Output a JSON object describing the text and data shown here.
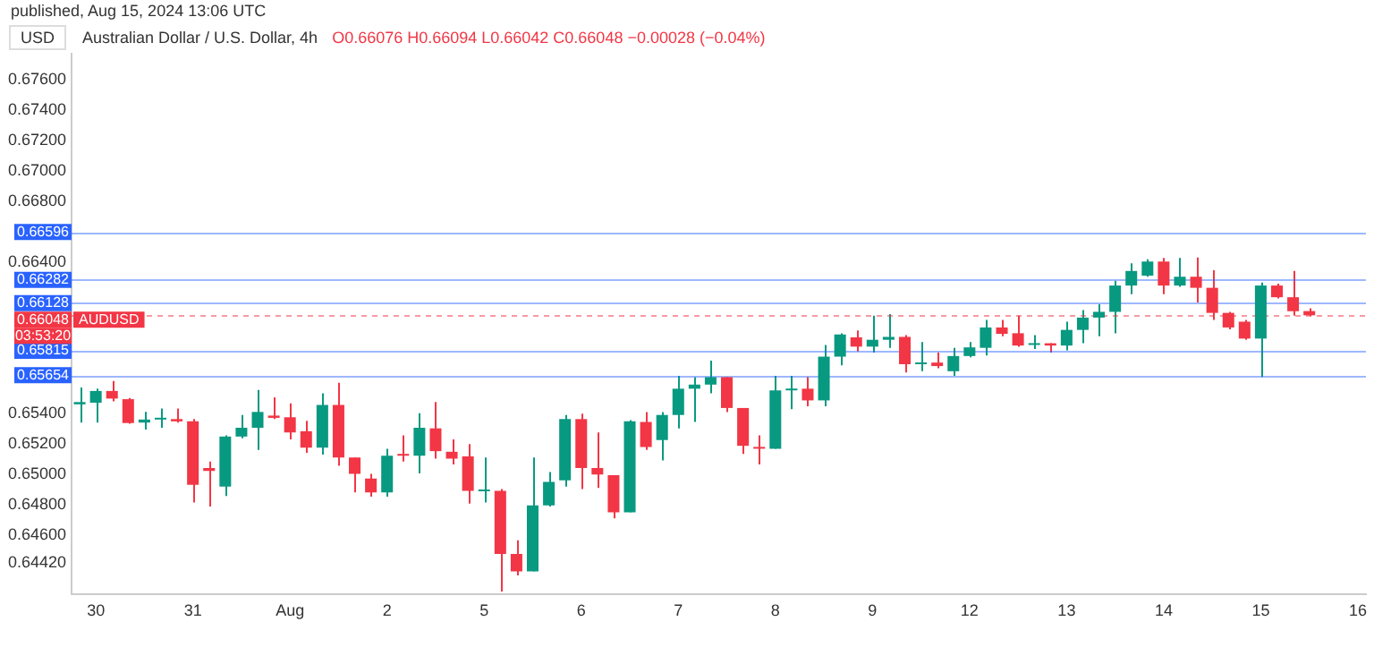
{
  "chart_data": {
    "type": "candlestick",
    "title": "Australian Dollar / U.S. Dollar, 4h",
    "subtitle": "O0.66076 H0.66094 L0.66042 C0.66048 −0.00028 (−0.04%)",
    "ylabel": "USD",
    "annotations": [
      "published, Aug 15, 2024 13:06 UTC",
      {
        "text": "AUDUSD",
        "y": 0.66048
      },
      "03:53:20"
    ],
    "categories": [
      null,
      "30",
      null,
      null,
      null,
      null,
      null,
      "31",
      null,
      null,
      null,
      null,
      null,
      "Aug",
      null,
      null,
      null,
      null,
      null,
      "2",
      null,
      null,
      null,
      null,
      null,
      "5",
      null,
      null,
      null,
      null,
      null,
      "6",
      null,
      null,
      null,
      null,
      null,
      "7",
      null,
      null,
      null,
      null,
      null,
      "8",
      null,
      null,
      null,
      null,
      null,
      "9",
      null,
      null,
      null,
      null,
      null,
      "12",
      null,
      null,
      null,
      null,
      null,
      "13",
      null,
      null,
      null,
      null,
      null,
      "14",
      null,
      null,
      null,
      null,
      null,
      "15",
      null,
      null,
      null,
      null,
      null,
      "16"
    ],
    "ohlc": [
      [
        0.65462,
        0.65573,
        0.65342,
        0.65477
      ],
      [
        0.65473,
        0.65565,
        0.65342,
        0.6555
      ],
      [
        0.6555,
        0.65615,
        0.65481,
        0.655
      ],
      [
        0.65496,
        0.65504,
        0.65335,
        0.65339
      ],
      [
        0.65342,
        0.65412,
        0.65296,
        0.65362
      ],
      [
        0.65362,
        0.65435,
        0.65308,
        0.65373
      ],
      [
        0.65365,
        0.65435,
        0.65342,
        0.6535
      ],
      [
        0.6535,
        0.65365,
        0.64816,
        0.64932
      ],
      [
        0.65043,
        0.65085,
        0.6479,
        0.65024
      ],
      [
        0.6492,
        0.65258,
        0.64859,
        0.6525
      ],
      [
        0.6525,
        0.65392,
        0.65239,
        0.65308
      ],
      [
        0.65308,
        0.65557,
        0.65162,
        0.65412
      ],
      [
        0.65388,
        0.65508,
        0.65365,
        0.65373
      ],
      [
        0.65377,
        0.65469,
        0.65231,
        0.65277
      ],
      [
        0.65285,
        0.65354,
        0.65143,
        0.65177
      ],
      [
        0.65177,
        0.65534,
        0.65131,
        0.65458
      ],
      [
        0.65458,
        0.65604,
        0.65058,
        0.65112
      ],
      [
        0.65112,
        0.65112,
        0.64882,
        0.65004
      ],
      [
        0.64974,
        0.65004,
        0.64855,
        0.64882
      ],
      [
        0.64882,
        0.6517,
        0.64855,
        0.65124
      ],
      [
        0.65128,
        0.65258,
        0.65085,
        0.65124
      ],
      [
        0.65124,
        0.65404,
        0.65008,
        0.65308
      ],
      [
        0.65304,
        0.65477,
        0.65104,
        0.65154
      ],
      [
        0.6515,
        0.65231,
        0.65066,
        0.65104
      ],
      [
        0.65119,
        0.652,
        0.64808,
        0.64893
      ],
      [
        0.64889,
        0.65112,
        0.64816,
        0.649
      ],
      [
        0.64893,
        0.64904,
        0.6423,
        0.64478
      ],
      [
        0.64478,
        0.64567,
        0.64336,
        0.64363
      ],
      [
        0.64363,
        0.65112,
        0.64363,
        0.64797
      ],
      [
        0.64797,
        0.65016,
        0.64789,
        0.64951
      ],
      [
        0.64962,
        0.65392,
        0.6492,
        0.65365
      ],
      [
        0.65365,
        0.654,
        0.64905,
        0.65043
      ],
      [
        0.65043,
        0.65277,
        0.64912,
        0.65
      ],
      [
        0.64996,
        0.64996,
        0.64712,
        0.64751
      ],
      [
        0.64751,
        0.65358,
        0.64751,
        0.6535
      ],
      [
        0.65346,
        0.65411,
        0.65162,
        0.65181
      ],
      [
        0.65227,
        0.65411,
        0.65093,
        0.65392
      ],
      [
        0.65392,
        0.6565,
        0.65304,
        0.65565
      ],
      [
        0.65565,
        0.65641,
        0.65346,
        0.65592
      ],
      [
        0.65592,
        0.65749,
        0.65534,
        0.65641
      ],
      [
        0.65641,
        0.65641,
        0.65411,
        0.65438
      ],
      [
        0.65438,
        0.65438,
        0.65135,
        0.65189
      ],
      [
        0.65181,
        0.65258,
        0.65066,
        0.6517
      ],
      [
        0.6517,
        0.6565,
        0.6517,
        0.65554
      ],
      [
        0.65554,
        0.6565,
        0.6543,
        0.65565
      ],
      [
        0.65565,
        0.65642,
        0.6545,
        0.65488
      ],
      [
        0.65488,
        0.65853,
        0.6545,
        0.65776
      ],
      [
        0.65776,
        0.6593,
        0.65719,
        0.65922
      ],
      [
        0.65903,
        0.65949,
        0.6581,
        0.65842
      ],
      [
        0.65842,
        0.66045,
        0.65803,
        0.65887
      ],
      [
        0.65887,
        0.66056,
        0.65834,
        0.65906
      ],
      [
        0.65906,
        0.65918,
        0.65672,
        0.65726
      ],
      [
        0.65726,
        0.65872,
        0.6568,
        0.65737
      ],
      [
        0.65737,
        0.65803,
        0.65699,
        0.65714
      ],
      [
        0.6568,
        0.65834,
        0.65649,
        0.6578
      ],
      [
        0.6578,
        0.65872,
        0.65772,
        0.65837
      ],
      [
        0.65834,
        0.66017,
        0.65784,
        0.65968
      ],
      [
        0.65968,
        0.66017,
        0.6591,
        0.65926
      ],
      [
        0.6593,
        0.66045,
        0.65841,
        0.65849
      ],
      [
        0.65853,
        0.65918,
        0.65826,
        0.65864
      ],
      [
        0.65864,
        0.65864,
        0.65803,
        0.65849
      ],
      [
        0.65849,
        0.66006,
        0.65818,
        0.65952
      ],
      [
        0.65952,
        0.66083,
        0.65864,
        0.66033
      ],
      [
        0.66033,
        0.66121,
        0.6591,
        0.66071
      ],
      [
        0.66071,
        0.66275,
        0.6593,
        0.66244
      ],
      [
        0.66244,
        0.6639,
        0.66187,
        0.6634
      ],
      [
        0.66309,
        0.66417,
        0.66302,
        0.66402
      ],
      [
        0.66402,
        0.66425,
        0.66187,
        0.66244
      ],
      [
        0.66244,
        0.66425,
        0.66236,
        0.66302
      ],
      [
        0.66302,
        0.66429,
        0.66133,
        0.66229
      ],
      [
        0.66229,
        0.66344,
        0.66017,
        0.66064
      ],
      [
        0.66064,
        0.66071,
        0.65956,
        0.65968
      ],
      [
        0.66006,
        0.66017,
        0.65887,
        0.65895
      ],
      [
        0.65895,
        0.66263,
        0.65642,
        0.66244
      ],
      [
        0.66244,
        0.66256,
        0.66159,
        0.66167
      ],
      [
        0.66167,
        0.6634,
        0.66045,
        0.66075
      ],
      [
        0.66076,
        0.66094,
        0.66042,
        0.66048
      ],
      null,
      null,
      null
    ],
    "colors": [
      "#089981",
      "#089981",
      "#f23645",
      "#f23645",
      "#089981",
      "#089981",
      "#f23645",
      "#f23645",
      "#f23645",
      "#089981",
      "#089981",
      "#089981",
      "#f23645",
      "#f23645",
      "#f23645",
      "#089981",
      "#f23645",
      "#f23645",
      "#f23645",
      "#089981",
      "#f23645",
      "#089981",
      "#f23645",
      "#f23645",
      "#f23645",
      "#089981",
      "#f23645",
      "#f23645",
      "#089981",
      "#089981",
      "#089981",
      "#f23645",
      "#f23645",
      "#f23645",
      "#089981",
      "#f23645",
      "#089981",
      "#089981",
      "#089981",
      "#089981",
      "#f23645",
      "#f23645",
      "#f23645",
      "#089981",
      "#089981",
      "#f23645",
      "#089981",
      "#089981",
      "#f23645",
      "#089981",
      "#089981",
      "#f23645",
      "#089981",
      "#f23645",
      "#089981",
      "#089981",
      "#089981",
      "#f23645",
      "#f23645",
      "#089981",
      "#f23645",
      "#089981",
      "#089981",
      "#089981",
      "#089981",
      "#089981",
      "#089981",
      "#f23645",
      "#089981",
      "#f23645",
      "#f23645",
      "#f23645",
      "#f23645",
      "#089981",
      "#f23645",
      "#f23645",
      "#f23645",
      null,
      null,
      null
    ],
    "ylim": [
      0.6421,
      0.6777
    ],
    "yticks": [
      {
        "value": 0.6442,
        "label": "0.64420"
      },
      {
        "value": 0.646,
        "label": "0.64600"
      },
      {
        "value": 0.648,
        "label": "0.64800"
      },
      {
        "value": 0.65,
        "label": "0.65000"
      },
      {
        "value": 0.652,
        "label": "0.65200"
      },
      {
        "value": 0.654,
        "label": "0.65400"
      },
      {
        "value": 0.664,
        "label": "0.66400"
      },
      {
        "value": 0.668,
        "label": "0.66800"
      },
      {
        "value": 0.67,
        "label": "0.67000"
      },
      {
        "value": 0.672,
        "label": "0.67200"
      },
      {
        "value": 0.674,
        "label": "0.67400"
      },
      {
        "value": 0.676,
        "label": "0.67600"
      }
    ],
    "ref_lines": [
      {
        "axis": "y",
        "value": 0.66596,
        "label": "0.66596",
        "color": "#2962ff"
      },
      {
        "axis": "y",
        "value": 0.66282,
        "label": "0.66282",
        "color": "#2962ff"
      },
      {
        "axis": "y",
        "value": 0.66128,
        "label": "0.66128",
        "color": "#2962ff"
      },
      {
        "axis": "y",
        "value": 0.65815,
        "label": "0.65815",
        "color": "#2962ff"
      },
      {
        "axis": "y",
        "value": 0.65654,
        "label": "0.65654",
        "color": "#2962ff"
      },
      {
        "axis": "y",
        "value": 0.66048,
        "label": "0.66048",
        "color": "#f23645",
        "line_style": "dashed"
      }
    ]
  }
}
